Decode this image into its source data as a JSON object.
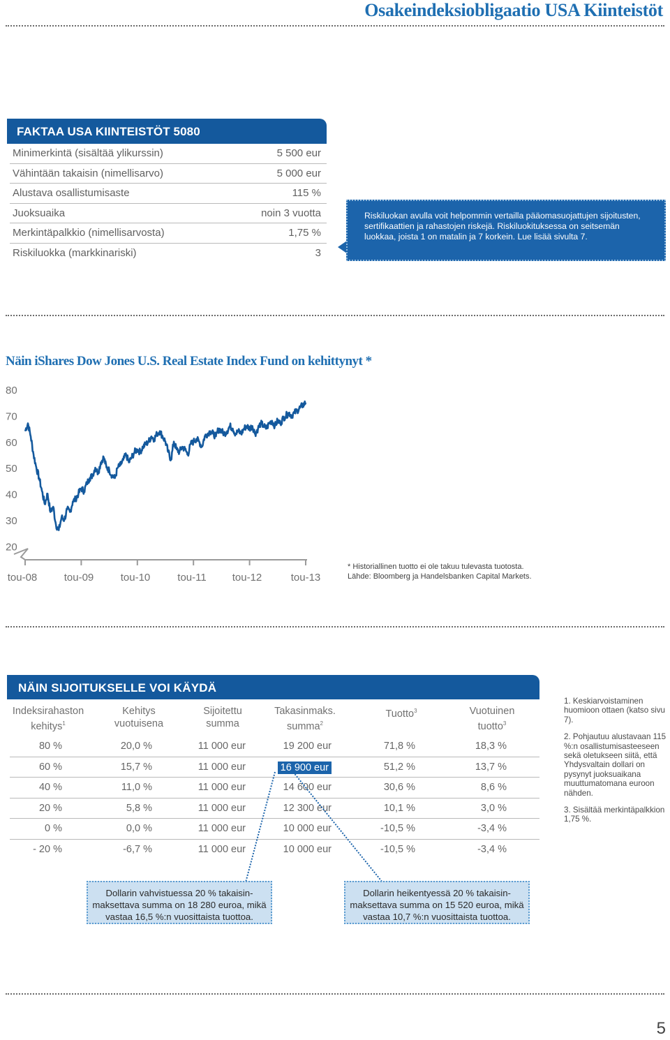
{
  "header": {
    "title": "Osakeindeksiobligaatio USA Kiinteistöt"
  },
  "facts": {
    "heading": "FAKTAA USA KIINTEISTÖT 5080",
    "rows": [
      {
        "label": "Minimerkintä (sisältää ylikurssin)",
        "value": "5 500 eur"
      },
      {
        "label": "Vähintään takaisin (nimellisarvo)",
        "value": "5 000 eur"
      },
      {
        "label": "Alustava osallistumisaste",
        "value": "115 %"
      },
      {
        "label": "Juoksuaika",
        "value": "noin 3 vuotta"
      },
      {
        "label": "Merkintäpalkkio (nimellisarvosta)",
        "value": "1,75 %"
      },
      {
        "label": "Riskiluokka (markkinariski)",
        "value": "3"
      }
    ],
    "callout": "Riskiluokan avulla voit helpommin vertailla pääomasuojattujen sijoitusten, sertifikaattien ja rahastojen riskejä. Riskiluokituksessa on seitsemän luokkaa, joista 1 on matalin ja 7 korkein. Lue lisää sivulta 7."
  },
  "chart_title": "Näin iShares Dow Jones U.S. Real Estate Index Fund on kehittynyt *",
  "chart_data": {
    "type": "line",
    "title": "Näin iShares Dow Jones U.S. Real Estate Index Fund on kehittynyt *",
    "xlabel": "",
    "ylabel": "",
    "y_ticks": [
      "80",
      "70",
      "60",
      "50",
      "40",
      "30",
      "20"
    ],
    "x_ticks": [
      "tou-08",
      "tou-09",
      "tou-10",
      "tou-11",
      "tou-12",
      "tou-13"
    ],
    "ylim": [
      20,
      80
    ],
    "xlim": [
      0,
      5
    ],
    "grid": false,
    "color": "#14599d",
    "series": [
      {
        "x": [
          0,
          0.05,
          0.1,
          0.15,
          0.2,
          0.25,
          0.3,
          0.35,
          0.4,
          0.45,
          0.5,
          0.55,
          0.6,
          0.65,
          0.7,
          0.75,
          0.8,
          0.85,
          0.9,
          0.95,
          1.0,
          1.05,
          1.1,
          1.15,
          1.2,
          1.25,
          1.3,
          1.35,
          1.4,
          1.45,
          1.5,
          1.55,
          1.6,
          1.65,
          1.7,
          1.75,
          1.8,
          1.85,
          1.9,
          1.95,
          2.0,
          2.05,
          2.1,
          2.15,
          2.2,
          2.25,
          2.3,
          2.35,
          2.4,
          2.45,
          2.5,
          2.55,
          2.6,
          2.65,
          2.7,
          2.75,
          2.8,
          2.85,
          2.9,
          2.95,
          3.0,
          3.05,
          3.1,
          3.15,
          3.2,
          3.25,
          3.3,
          3.35,
          3.4,
          3.45,
          3.5,
          3.55,
          3.6,
          3.65,
          3.7,
          3.75,
          3.8,
          3.85,
          3.9,
          3.95,
          4.0,
          4.05,
          4.1,
          4.15,
          4.2,
          4.25,
          4.3,
          4.35,
          4.4,
          4.45,
          4.5,
          4.55,
          4.6,
          4.65,
          4.7,
          4.75,
          4.8,
          4.85,
          4.9,
          4.95,
          5.0
        ],
        "y": [
          64,
          67,
          62,
          55,
          50,
          46,
          41,
          36,
          40,
          33,
          35,
          28,
          26,
          31,
          30,
          34,
          33,
          37,
          38,
          40,
          42,
          41,
          44,
          46,
          47,
          50,
          48,
          52,
          54,
          50,
          49,
          47,
          46,
          50,
          51,
          53,
          55,
          52,
          54,
          56,
          57,
          56,
          58,
          59,
          60,
          62,
          61,
          63,
          64,
          62,
          60,
          56,
          53,
          60,
          57,
          56,
          58,
          57,
          55,
          59,
          60,
          61,
          60,
          58,
          62,
          63,
          64,
          63,
          62,
          65,
          64,
          63,
          64,
          66,
          65,
          63,
          64,
          63,
          65,
          66,
          65,
          66,
          63,
          65,
          67,
          66,
          65,
          67,
          68,
          66,
          68,
          67,
          69,
          70,
          71,
          70,
          71,
          72,
          73,
          74,
          75
        ]
      }
    ]
  },
  "chart_note": [
    "* Historiallinen tuotto ei ole takuu tulevasta tuotosta.",
    "Lähde: Bloomberg ja Handelsbanken Capital Markets."
  ],
  "returns": {
    "heading": "NÄIN SIJOITUKSELLE VOI KÄYDÄ",
    "columns": [
      {
        "l1": "Indeksirahaston",
        "l2": "kehitys",
        "sup": "1"
      },
      {
        "l1": "Kehitys",
        "l2": "vuotuisena",
        "sup": ""
      },
      {
        "l1": "Sijoitettu",
        "l2": "summa",
        "sup": ""
      },
      {
        "l1": "Takasinmaks.",
        "l2": "summa",
        "sup": "2"
      },
      {
        "l1": "Tuotto",
        "l2": "",
        "sup": "3"
      },
      {
        "l1": "Vuotuinen",
        "l2": "tuotto",
        "sup": "3"
      }
    ],
    "rows": [
      [
        "80 %",
        "20,0 %",
        "11 000 eur",
        "19 200 eur",
        "71,8 %",
        "18,3 %"
      ],
      [
        "60 %",
        "15,7 %",
        "11 000 eur",
        "16 900 eur",
        "51,2 %",
        "13,7 %"
      ],
      [
        "40 %",
        "11,0 %",
        "11 000 eur",
        "14 600 eur",
        "30,6 %",
        "8,6 %"
      ],
      [
        "20 %",
        "5,8 %",
        "11 000 eur",
        "12 300 eur",
        "10,1 %",
        "3,0 %"
      ],
      [
        "0 %",
        "0,0 %",
        "11 000 eur",
        "10 000 eur",
        "-10,5 %",
        "-3,4 %"
      ],
      [
        "- 20 %",
        "-6,7 %",
        "11 000 eur",
        "10 000 eur",
        "-10,5 %",
        "-3,4 %"
      ]
    ],
    "notes": [
      "1. Keskiarvoistaminen huomioon ottaen (katso sivu 7).",
      "2. Pohjautuu alustavaan 115 %:n osallistumisasteeseen sekä oletukseen siitä, että Yhdysvaltain dollari on pysynyt juoksuaikana muuttumatomana euroon nähden.",
      "3. Sisältää merkintäpalkkion 1,75 %."
    ],
    "box_left": [
      "Dollarin vahvistuessa 20 % takaisin-",
      "maksettava summa on 18 280 euroa, mikä",
      "vastaa 16,5 %:n vuosittaista tuottoa."
    ],
    "box_right": [
      "Dollarin heikentyessä 20 % takaisin-",
      "maksettava summa on 15 520 euroa, mikä",
      "vastaa 10,7 %:n vuosittaista tuottoa."
    ]
  },
  "page": {
    "number": "5"
  }
}
